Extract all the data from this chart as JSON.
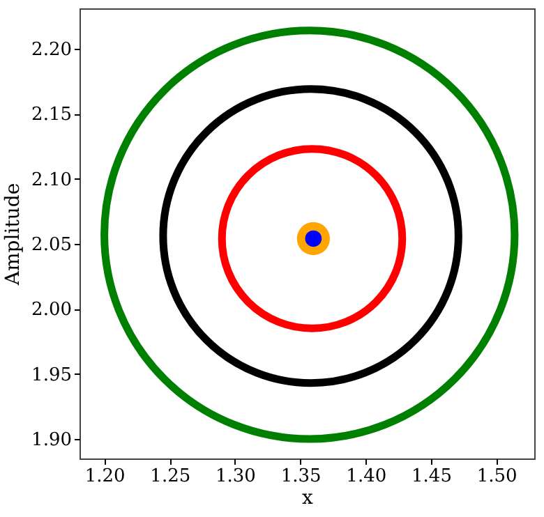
{
  "chart_data": {
    "type": "scatter",
    "xlabel": "x",
    "ylabel": "Amplitude",
    "xlim": [
      1.181,
      1.529
    ],
    "ylim": [
      1.885,
      2.231
    ],
    "xticks": [
      {
        "value": 1.2,
        "label": "1.20"
      },
      {
        "value": 1.25,
        "label": "1.25"
      },
      {
        "value": 1.3,
        "label": "1.30"
      },
      {
        "value": 1.35,
        "label": "1.35"
      },
      {
        "value": 1.4,
        "label": "1.40"
      },
      {
        "value": 1.45,
        "label": "1.45"
      },
      {
        "value": 1.5,
        "label": "1.50"
      }
    ],
    "yticks": [
      {
        "value": 1.9,
        "label": "1.90"
      },
      {
        "value": 1.95,
        "label": "1.95"
      },
      {
        "value": 2.0,
        "label": "2.00"
      },
      {
        "value": 2.05,
        "label": "2.05"
      },
      {
        "value": 2.1,
        "label": "2.10"
      },
      {
        "value": 2.15,
        "label": "2.15"
      },
      {
        "value": 2.2,
        "label": "2.20"
      }
    ],
    "grid": false,
    "marker": "circle",
    "series": [
      {
        "color": "#ffa500",
        "x": [
          1.36
        ],
        "values": [
          2.054
        ]
      },
      {
        "color": "#0000ff",
        "x": [
          1.36
        ],
        "values": [
          2.054
        ]
      }
    ]
  }
}
